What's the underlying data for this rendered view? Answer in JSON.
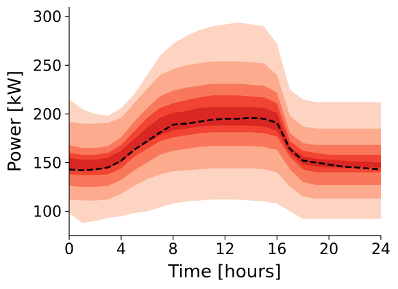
{
  "chart_data": {
    "type": "area",
    "title": "",
    "xlabel": "Time [hours]",
    "ylabel": "Power [kW]",
    "xlim": [
      0,
      24
    ],
    "ylim": [
      75,
      310
    ],
    "grid": false,
    "legend": "none",
    "x_ticks": [
      0,
      4,
      8,
      12,
      16,
      20,
      24
    ],
    "y_ticks": [
      100,
      150,
      200,
      250,
      300
    ],
    "x": [
      0,
      1,
      2,
      3,
      4,
      5,
      6,
      7,
      8,
      9,
      10,
      11,
      12,
      13,
      14,
      15,
      16,
      17,
      18,
      19,
      20,
      21,
      22,
      23,
      24
    ],
    "bands": [
      {
        "color": "#fdd4c2",
        "lower": [
          98,
          88,
          90,
          93,
          95,
          98,
          100,
          104,
          108,
          110,
          111,
          112,
          112,
          112,
          111,
          110,
          108,
          100,
          92,
          92,
          92,
          92,
          92,
          92,
          92
        ],
        "upper": [
          215,
          205,
          200,
          198,
          206,
          220,
          240,
          260,
          272,
          280,
          286,
          290,
          292,
          294,
          292,
          290,
          272,
          225,
          215,
          212,
          212,
          212,
          212,
          212,
          212
        ]
      },
      {
        "color": "#fcab8f",
        "lower": [
          112,
          111,
          111,
          112,
          118,
          126,
          133,
          138,
          141,
          142,
          143,
          144,
          144,
          144,
          144,
          143,
          140,
          125,
          115,
          113,
          113,
          113,
          113,
          113,
          113
        ],
        "upper": [
          192,
          190,
          190,
          191,
          196,
          211,
          226,
          240,
          246,
          250,
          252,
          254,
          254,
          254,
          253,
          252,
          240,
          198,
          187,
          185,
          185,
          185,
          185,
          185,
          185
        ]
      },
      {
        "color": "#f9785b",
        "lower": [
          126,
          125,
          125,
          126,
          132,
          142,
          150,
          158,
          162,
          164,
          166,
          167,
          167,
          167,
          167,
          166,
          163,
          143,
          130,
          127,
          127,
          127,
          127,
          127,
          127
        ],
        "upper": [
          168,
          165,
          165,
          167,
          176,
          192,
          206,
          218,
          224,
          227,
          229,
          231,
          231,
          231,
          230,
          229,
          222,
          180,
          170,
          168,
          168,
          168,
          168,
          168,
          168
        ]
      },
      {
        "color": "#f14432",
        "lower": [
          138,
          137,
          137,
          138,
          144,
          156,
          164,
          172,
          176,
          178,
          180,
          181,
          181,
          181,
          181,
          180,
          177,
          156,
          143,
          140,
          140,
          140,
          140,
          140,
          140
        ],
        "upper": [
          160,
          158,
          158,
          160,
          168,
          182,
          196,
          206,
          211,
          214,
          217,
          219,
          219,
          219,
          218,
          217,
          211,
          172,
          162,
          160,
          158,
          158,
          158,
          158,
          158
        ]
      },
      {
        "color": "#d92723",
        "lower": [
          144,
          142,
          142,
          144,
          150,
          162,
          170,
          178,
          183,
          185,
          187,
          188,
          188,
          188,
          188,
          187,
          183,
          160,
          148,
          146,
          145,
          145,
          145,
          145,
          145
        ],
        "upper": [
          155,
          153,
          153,
          155,
          162,
          174,
          186,
          196,
          201,
          203,
          206,
          207,
          207,
          207,
          207,
          206,
          201,
          166,
          156,
          154,
          153,
          152,
          151,
          151,
          150
        ]
      }
    ],
    "series": [
      {
        "name": "",
        "style": "dashed",
        "color": "#000000",
        "values": [
          143,
          142,
          143,
          145,
          152,
          163,
          172,
          181,
          189,
          190,
          192,
          194,
          195,
          195,
          196,
          195,
          191,
          164,
          152,
          150,
          148,
          146,
          145,
          144,
          143
        ]
      }
    ]
  }
}
